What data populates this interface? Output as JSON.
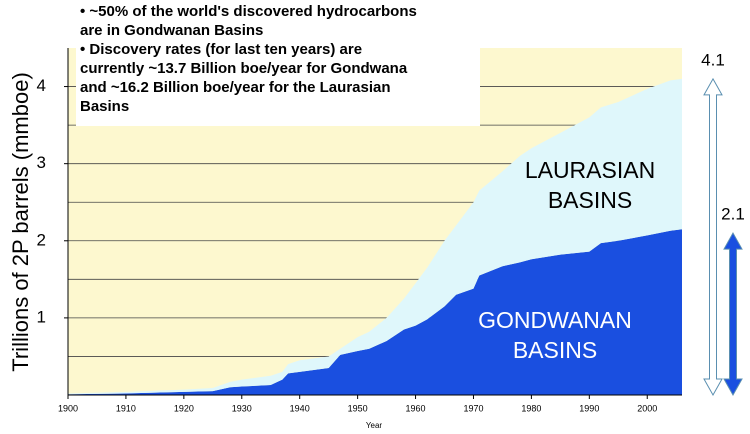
{
  "chart_data": {
    "type": "stacked_area",
    "xlabel": "Year",
    "ylabel": "Trillions of 2P barrels (mmboe)",
    "notes": [
      "• ~50% of the world's discovered hydrocarbons",
      "are in Gondwanan Basins",
      "• Discovery rates (for last ten years) are",
      "currently ~13.7 Billion boe/year for Gondwana",
      "and ~16.2 Billion boe/year for the Laurasian",
      "Basins"
    ],
    "x": [
      1900,
      1910,
      1920,
      1925,
      1928,
      1930,
      1935,
      1937,
      1938,
      1940,
      1945,
      1947,
      1950,
      1952,
      1955,
      1958,
      1960,
      1962,
      1965,
      1967,
      1970,
      1971,
      1975,
      1978,
      1980,
      1985,
      1990,
      1992,
      1995,
      2000,
      2004,
      2006
    ],
    "series": [
      {
        "name": "GONDWANAN BASINS",
        "color": "#1a4fe0",
        "values": [
          0.01,
          0.02,
          0.04,
          0.05,
          0.1,
          0.11,
          0.13,
          0.2,
          0.28,
          0.3,
          0.35,
          0.52,
          0.57,
          0.6,
          0.7,
          0.85,
          0.9,
          0.98,
          1.15,
          1.3,
          1.38,
          1.55,
          1.67,
          1.72,
          1.76,
          1.82,
          1.86,
          1.97,
          2.0,
          2.07,
          2.13,
          2.15
        ]
      },
      {
        "name": "LAURASIAN BASINS",
        "color": "#dff7fb",
        "values": [
          0.01,
          0.02,
          0.03,
          0.04,
          0.07,
          0.09,
          0.12,
          0.1,
          0.12,
          0.15,
          0.15,
          0.08,
          0.18,
          0.22,
          0.3,
          0.4,
          0.55,
          0.67,
          0.85,
          0.9,
          1.12,
          1.1,
          1.23,
          1.38,
          1.44,
          1.58,
          1.74,
          1.76,
          1.8,
          1.9,
          1.95,
          1.95
        ]
      }
    ],
    "arrows": [
      {
        "value": 4.1,
        "color": "#ffffff"
      },
      {
        "value": 2.1,
        "color": "#1a4fe0"
      }
    ],
    "xlim": [
      1900,
      2006
    ],
    "ylim": [
      0,
      4.5
    ],
    "xticks": [
      1900,
      1910,
      1920,
      1930,
      1940,
      1950,
      1960,
      1970,
      1980,
      1990,
      2000
    ],
    "yticks": [
      1,
      2,
      3,
      4
    ],
    "ygrid": [
      0.5,
      1,
      1.5,
      2,
      2.5,
      3,
      3.5,
      4
    ],
    "background": "#fdf8cf"
  }
}
